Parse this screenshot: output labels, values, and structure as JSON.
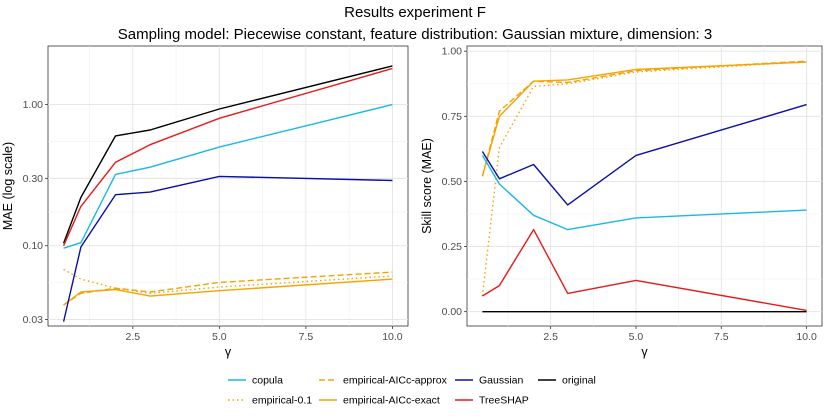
{
  "title": "Results experiment F",
  "subtitle": "Sampling model: Piecewise constant, feature distribution: Gaussian mixture, dimension: 3",
  "chart_data": [
    {
      "type": "line",
      "panel": "left",
      "xlabel": "γ",
      "ylabel": "MAE (log scale)",
      "yscale": "log",
      "xlim": [
        0.05,
        10.45
      ],
      "ylim": [
        0.027,
        2.6
      ],
      "xticks": [
        2.5,
        5.0,
        7.5,
        10.0
      ],
      "xtick_labels": [
        "2.5",
        "5.0",
        "7.5",
        "10.0"
      ],
      "yticks": [
        0.03,
        0.1,
        0.3,
        1.0
      ],
      "ytick_labels": [
        "0.03",
        "0.10",
        "0.30",
        "1.00"
      ],
      "x": [
        0.5,
        1,
        2,
        3,
        5,
        10
      ],
      "series": [
        {
          "name": "copula",
          "values": [
            0.096,
            0.105,
            0.32,
            0.36,
            0.5,
            1.0
          ]
        },
        {
          "name": "empirical-0.1",
          "values": [
            0.068,
            0.058,
            0.05,
            0.046,
            0.051,
            0.061
          ]
        },
        {
          "name": "empirical-AICc-approx",
          "values": [
            0.038,
            0.046,
            0.05,
            0.047,
            0.055,
            0.065
          ]
        },
        {
          "name": "empirical-AICc-exact",
          "values": [
            0.038,
            0.047,
            0.049,
            0.044,
            0.048,
            0.058
          ]
        },
        {
          "name": "Gaussian",
          "values": [
            0.029,
            0.098,
            0.23,
            0.24,
            0.31,
            0.29
          ]
        },
        {
          "name": "TreeSHAP",
          "values": [
            0.1,
            0.19,
            0.39,
            0.52,
            0.8,
            1.8
          ]
        },
        {
          "name": "original",
          "values": [
            0.104,
            0.22,
            0.6,
            0.66,
            0.93,
            1.88
          ]
        }
      ]
    },
    {
      "type": "line",
      "panel": "right",
      "xlabel": "γ",
      "ylabel": "Skill score (MAE)",
      "xlim": [
        0.05,
        10.45
      ],
      "ylim": [
        -0.055,
        1.02
      ],
      "xticks": [
        2.5,
        5.0,
        7.5,
        10.0
      ],
      "xtick_labels": [
        "2.5",
        "5.0",
        "7.5",
        "10.0"
      ],
      "yticks": [
        0.0,
        0.25,
        0.5,
        0.75,
        1.0
      ],
      "ytick_labels": [
        "0.00",
        "0.25",
        "0.50",
        "0.75",
        "1.00"
      ],
      "x": [
        0.5,
        1,
        2,
        3,
        5,
        10
      ],
      "series": [
        {
          "name": "copula",
          "values": [
            0.6,
            0.49,
            0.37,
            0.315,
            0.36,
            0.39
          ]
        },
        {
          "name": "empirical-0.1",
          "values": [
            0.06,
            0.63,
            0.865,
            0.875,
            0.92,
            0.96
          ]
        },
        {
          "name": "empirical-AICc-approx",
          "values": [
            0.52,
            0.77,
            0.885,
            0.88,
            0.925,
            0.962
          ]
        },
        {
          "name": "empirical-AICc-exact",
          "values": [
            0.52,
            0.75,
            0.885,
            0.89,
            0.93,
            0.958
          ]
        },
        {
          "name": "Gaussian",
          "values": [
            0.615,
            0.51,
            0.565,
            0.41,
            0.6,
            0.795
          ]
        },
        {
          "name": "TreeSHAP",
          "values": [
            0.06,
            0.1,
            0.315,
            0.07,
            0.12,
            0.005
          ]
        },
        {
          "name": "original",
          "values": [
            0,
            0,
            0,
            0,
            0,
            0
          ]
        }
      ]
    }
  ],
  "legend": [
    {
      "name": "copula",
      "color": "#1ab8e6",
      "dash": "solid"
    },
    {
      "name": "empirical-0.1",
      "color": "#f5a300",
      "dash": "dotted"
    },
    {
      "name": "empirical-AICc-approx",
      "color": "#f5a300",
      "dash": "dashed"
    },
    {
      "name": "empirical-AICc-exact",
      "color": "#f5a300",
      "dash": "solid"
    },
    {
      "name": "Gaussian",
      "color": "#0b0fa8",
      "dash": "solid"
    },
    {
      "name": "TreeSHAP",
      "color": "#e61a1a",
      "dash": "solid"
    },
    {
      "name": "original",
      "color": "#000000",
      "dash": "solid"
    }
  ]
}
